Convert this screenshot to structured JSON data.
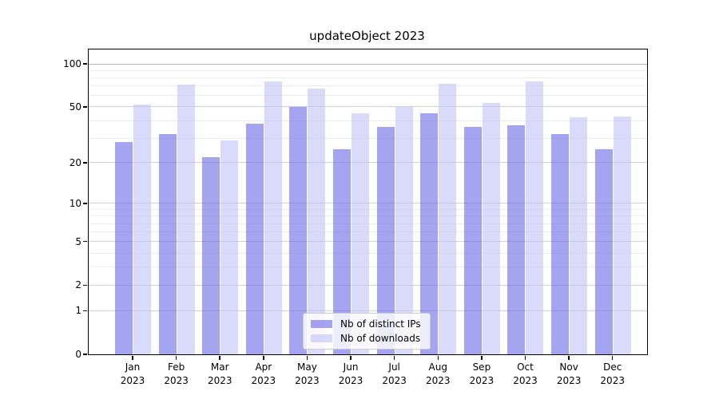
{
  "chart_data": {
    "type": "bar",
    "title": "updateObject 2023",
    "categories": [
      "Jan",
      "Feb",
      "Mar",
      "Apr",
      "May",
      "Jun",
      "Jul",
      "Aug",
      "Sep",
      "Oct",
      "Nov",
      "Dec"
    ],
    "year_label": "2023",
    "series": [
      {
        "name": "Nb of distinct IPs",
        "color": "rgba(108,108,231,0.62)",
        "values": [
          28,
          32,
          22,
          38,
          50,
          25,
          36,
          45,
          36,
          37,
          32,
          25
        ]
      },
      {
        "name": "Nb of downloads",
        "color": "rgba(196,196,248,0.62)",
        "values": [
          52,
          72,
          29,
          75,
          67,
          45,
          50,
          73,
          53,
          75,
          42,
          43
        ]
      }
    ],
    "yscale": "log1p",
    "ylim": [
      0,
      126
    ],
    "yticks": [
      0,
      1,
      2,
      5,
      10,
      20,
      50,
      100
    ],
    "minor_gridlines": [
      3,
      4,
      6,
      7,
      8,
      9,
      30,
      40,
      60,
      70,
      80,
      90
    ],
    "grid": {
      "major_color": "#d0d0d0",
      "minor_color": "#ececec",
      "top_color": "#b4b4b4"
    },
    "legend_position": "bottom-center"
  }
}
